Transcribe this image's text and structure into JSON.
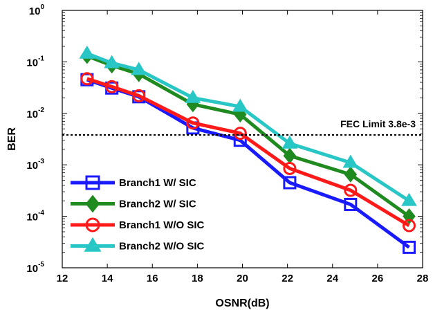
{
  "chart_data": {
    "type": "line",
    "xlabel": "OSNR(dB)",
    "ylabel": "BER",
    "xlim": [
      12,
      28
    ],
    "ylim_log10": [
      -5,
      0
    ],
    "y_scale": "log",
    "x_ticks": [
      12,
      14,
      16,
      18,
      20,
      22,
      24,
      26,
      28
    ],
    "y_ticks": [
      {
        "base": "10",
        "exp": "-5",
        "exponent": -5
      },
      {
        "base": "10",
        "exp": "-4",
        "exponent": -4
      },
      {
        "base": "10",
        "exp": "-3",
        "exponent": -3
      },
      {
        "base": "10",
        "exp": "-2",
        "exponent": -2
      },
      {
        "base": "10",
        "exp": "-1",
        "exponent": -1
      },
      {
        "base": "10",
        "exp": "0",
        "exponent": 0
      }
    ],
    "grid": false,
    "legend_position": "bottom-left",
    "reference_line": {
      "label": "FEC Limit 3.8e-3",
      "y": 0.0038,
      "style": "dotted"
    },
    "x": [
      13.1,
      14.2,
      15.4,
      17.8,
      19.9,
      22.1,
      24.8,
      27.4
    ],
    "series": [
      {
        "name": "Branch1 W/ SIC",
        "color": "#1a1aff",
        "marker": "square",
        "values": [
          0.045,
          0.031,
          0.021,
          0.0052,
          0.003,
          0.00045,
          0.00017,
          2.5e-05
        ]
      },
      {
        "name": "Branch2 W/ SIC",
        "color": "#1f8a1f",
        "marker": "diamond",
        "values": [
          0.13,
          0.085,
          0.058,
          0.015,
          0.0095,
          0.0015,
          0.00065,
          0.0001
        ]
      },
      {
        "name": "Branch1 W/O SIC",
        "color": "#ff1a1a",
        "marker": "circle",
        "values": [
          0.047,
          0.033,
          0.022,
          0.0065,
          0.0041,
          0.00085,
          0.00032,
          6.6e-05
        ]
      },
      {
        "name": "Branch2 W/O SIC",
        "color": "#29c6c6",
        "marker": "triangle",
        "values": [
          0.145,
          0.095,
          0.07,
          0.02,
          0.0135,
          0.0026,
          0.0011,
          0.0002
        ]
      }
    ]
  }
}
